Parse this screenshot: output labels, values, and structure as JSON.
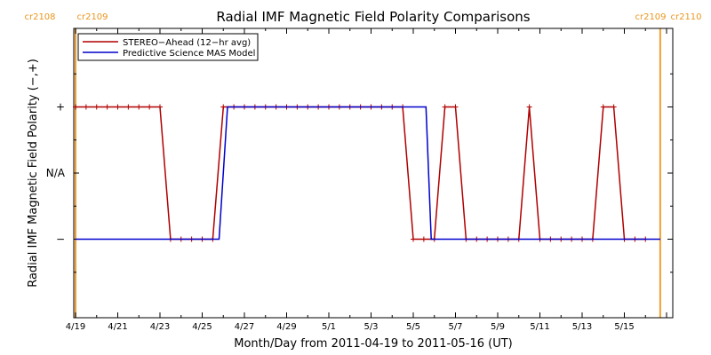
{
  "colors": {
    "stereo": "#b00000",
    "model": "#0000cc",
    "carrington": "#f0a030",
    "cr_text": "#e8961e",
    "axis": "#000000"
  },
  "carrington": {
    "left_labels": [
      "cr2108",
      "cr2109"
    ],
    "right_labels": [
      "cr2109",
      "cr2110"
    ]
  },
  "chart_data": {
    "type": "line",
    "title": "Radial IMF Magnetic Field Polarity Comparisons",
    "xlabel": "Month/Day from 2011-04-19 to 2011-05-16 (UT)",
    "ylabel": "Radial IMF Magnetic Field Polarity (−,+)",
    "x_start_date": "2011-04-19",
    "xlim_days": [
      0,
      28
    ],
    "ylim": [
      -1.5,
      1.5
    ],
    "x_ticks": [
      {
        "day": 0,
        "label": "4/19"
      },
      {
        "day": 2,
        "label": "4/21"
      },
      {
        "day": 4,
        "label": "4/23"
      },
      {
        "day": 6,
        "label": "4/25"
      },
      {
        "day": 8,
        "label": "4/27"
      },
      {
        "day": 10,
        "label": "4/29"
      },
      {
        "day": 12,
        "label": "5/1"
      },
      {
        "day": 14,
        "label": "5/3"
      },
      {
        "day": 16,
        "label": "5/5"
      },
      {
        "day": 18,
        "label": "5/7"
      },
      {
        "day": 20,
        "label": "5/9"
      },
      {
        "day": 22,
        "label": "5/11"
      },
      {
        "day": 24,
        "label": "5/13"
      },
      {
        "day": 26,
        "label": "5/15"
      }
    ],
    "y_ticks": [
      {
        "value": 1,
        "label": "+"
      },
      {
        "value": 0,
        "label": "N/A"
      },
      {
        "value": -1,
        "label": "−"
      }
    ],
    "carrington_boundaries_days": [
      0,
      27.7
    ],
    "legend": [
      "STEREO−Ahead (12−hr avg)",
      "Predictive Science MAS Model"
    ],
    "series": [
      {
        "name": "STEREO−Ahead (12−hr avg)",
        "markers": true,
        "points": [
          [
            0,
            1
          ],
          [
            0.5,
            1
          ],
          [
            1,
            1
          ],
          [
            1.5,
            1
          ],
          [
            2,
            1
          ],
          [
            2.5,
            1
          ],
          [
            3,
            1
          ],
          [
            3.5,
            1
          ],
          [
            4,
            1
          ],
          [
            4.5,
            -1
          ],
          [
            5,
            -1
          ],
          [
            5.5,
            -1
          ],
          [
            6,
            -1
          ],
          [
            6.5,
            -1
          ],
          [
            7,
            1
          ],
          [
            7.5,
            1
          ],
          [
            8,
            1
          ],
          [
            8.5,
            1
          ],
          [
            9,
            1
          ],
          [
            9.5,
            1
          ],
          [
            10,
            1
          ],
          [
            10.5,
            1
          ],
          [
            11,
            1
          ],
          [
            11.5,
            1
          ],
          [
            12,
            1
          ],
          [
            12.5,
            1
          ],
          [
            13,
            1
          ],
          [
            13.5,
            1
          ],
          [
            14,
            1
          ],
          [
            14.5,
            1
          ],
          [
            15,
            1
          ],
          [
            15.5,
            1
          ],
          [
            16,
            -1
          ],
          [
            16.5,
            -1
          ],
          [
            17,
            -1
          ],
          [
            17.5,
            1
          ],
          [
            18,
            1
          ],
          [
            18.5,
            -1
          ],
          [
            19,
            -1
          ],
          [
            19.5,
            -1
          ],
          [
            20,
            -1
          ],
          [
            20.5,
            -1
          ],
          [
            21,
            -1
          ],
          [
            21.5,
            1
          ],
          [
            22,
            -1
          ],
          [
            22.5,
            -1
          ],
          [
            23,
            -1
          ],
          [
            23.5,
            -1
          ],
          [
            24,
            -1
          ],
          [
            24.5,
            -1
          ],
          [
            25,
            1
          ],
          [
            25.5,
            1
          ],
          [
            26,
            -1
          ],
          [
            26.5,
            -1
          ],
          [
            27,
            -1
          ]
        ]
      },
      {
        "name": "Predictive Science MAS Model",
        "markers": false,
        "points": [
          [
            0,
            -1
          ],
          [
            6.8,
            -1
          ],
          [
            7.2,
            1
          ],
          [
            16.6,
            1
          ],
          [
            16.85,
            -1
          ],
          [
            27.7,
            -1
          ]
        ]
      }
    ]
  }
}
